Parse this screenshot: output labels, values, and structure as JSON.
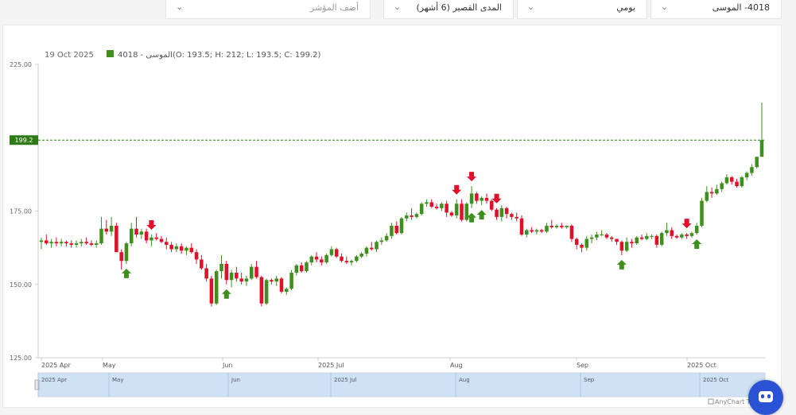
{
  "toolbar": {
    "symbol_select": "4018- الموسى",
    "interval_select": "يومي",
    "range_select": "المدى القصير (6 أشهر)",
    "indicator_placeholder": "أضف المؤشر"
  },
  "chart_data": {
    "type": "candlestick",
    "info": {
      "date": "19 Oct 2025",
      "series_label": "4018 - الموسى",
      "ohlc_text": "(O: 193.5; H: 212; L: 193.5; C: 199.2)"
    },
    "last_price": "199.2",
    "ylim": [
      125,
      225
    ],
    "yticks": [
      "225.00",
      "175.00",
      "150.00",
      "125.00"
    ],
    "xticks": [
      "2025 Apr",
      "May",
      "Jun",
      "2025 Jul",
      "Aug",
      "Sep",
      "2025 Oct"
    ],
    "navigator_ticks": [
      "2025 Apr",
      "May",
      "Jun",
      "2025 Jul",
      "Aug",
      "Sep",
      "2025 Oct"
    ],
    "colors": {
      "up": "#3f8f1f",
      "down": "#e0102a",
      "last_price": "#2f7a17",
      "navigator": "#cfe2f5"
    },
    "credit": "AnyChart Trial",
    "ohlc": [
      [
        164.5,
        166.0,
        162.0,
        165.0
      ],
      [
        165.0,
        167.0,
        163.5,
        164.0
      ],
      [
        164.0,
        165.5,
        162.5,
        164.5
      ],
      [
        164.5,
        166.0,
        163.0,
        164.0
      ],
      [
        164.0,
        165.5,
        163.0,
        164.5
      ],
      [
        164.5,
        165.0,
        163.0,
        164.0
      ],
      [
        164.0,
        165.0,
        162.5,
        163.5
      ],
      [
        163.5,
        165.0,
        162.5,
        164.0
      ],
      [
        164.0,
        165.5,
        163.0,
        164.5
      ],
      [
        164.5,
        166.0,
        163.5,
        164.0
      ],
      [
        164.0,
        165.0,
        163.0,
        163.5
      ],
      [
        163.5,
        165.0,
        162.5,
        164.0
      ],
      [
        164.0,
        173.0,
        163.5,
        169.0
      ],
      [
        169.0,
        172.0,
        167.0,
        168.0
      ],
      [
        168.0,
        173.0,
        166.5,
        170.0
      ],
      [
        170.0,
        171.0,
        161.0,
        161.0
      ],
      [
        161.0,
        162.0,
        155.0,
        158.0
      ],
      [
        158.0,
        164.5,
        157.0,
        164.0
      ],
      [
        164.0,
        171.0,
        163.0,
        169.0
      ],
      [
        169.0,
        173.0,
        166.0,
        167.0
      ],
      [
        167.0,
        169.0,
        165.5,
        168.0
      ],
      [
        168.0,
        169.0,
        164.0,
        165.0
      ],
      [
        165.0,
        167.0,
        163.0,
        166.0
      ],
      [
        166.0,
        167.5,
        165.0,
        165.5
      ],
      [
        165.5,
        166.5,
        164.0,
        164.5
      ],
      [
        164.5,
        166.0,
        162.0,
        163.5
      ],
      [
        163.5,
        164.5,
        161.0,
        162.0
      ],
      [
        162.0,
        164.0,
        161.0,
        163.0
      ],
      [
        163.0,
        164.0,
        160.5,
        161.5
      ],
      [
        161.5,
        163.0,
        160.0,
        162.5
      ],
      [
        162.5,
        164.0,
        160.5,
        161.0
      ],
      [
        161.0,
        162.0,
        157.0,
        158.5
      ],
      [
        158.5,
        160.0,
        155.0,
        155.5
      ],
      [
        155.5,
        157.0,
        151.0,
        152.0
      ],
      [
        152.0,
        153.0,
        142.5,
        143.5
      ],
      [
        143.5,
        155.0,
        143.0,
        154.5
      ],
      [
        154.5,
        160.0,
        152.0,
        157.0
      ],
      [
        157.0,
        158.0,
        150.0,
        151.5
      ],
      [
        151.5,
        155.0,
        149.0,
        154.0
      ],
      [
        154.0,
        156.0,
        151.0,
        152.0
      ],
      [
        152.0,
        154.0,
        150.0,
        151.0
      ],
      [
        151.0,
        153.0,
        149.5,
        152.0
      ],
      [
        152.0,
        157.0,
        151.5,
        156.0
      ],
      [
        156.0,
        158.0,
        152.0,
        152.5
      ],
      [
        152.5,
        153.0,
        142.5,
        143.5
      ],
      [
        143.5,
        152.0,
        143.0,
        151.5
      ],
      [
        151.5,
        152.0,
        150.0,
        151.0
      ],
      [
        151.0,
        153.0,
        149.5,
        152.0
      ],
      [
        152.0,
        152.5,
        147.0,
        147.5
      ],
      [
        147.5,
        149.0,
        146.5,
        148.5
      ],
      [
        148.5,
        155.0,
        148.0,
        154.0
      ],
      [
        154.0,
        157.0,
        153.0,
        156.5
      ],
      [
        156.5,
        157.5,
        154.0,
        154.5
      ],
      [
        154.5,
        158.0,
        154.0,
        157.5
      ],
      [
        157.5,
        160.0,
        156.5,
        159.5
      ],
      [
        159.5,
        161.0,
        157.5,
        158.5
      ],
      [
        158.5,
        159.5,
        156.5,
        157.5
      ],
      [
        157.5,
        160.5,
        157.0,
        160.0
      ],
      [
        160.0,
        163.0,
        159.5,
        162.0
      ],
      [
        162.0,
        162.5,
        159.0,
        159.5
      ],
      [
        159.5,
        160.5,
        157.5,
        158.0
      ],
      [
        158.0,
        159.5,
        157.0,
        157.5
      ],
      [
        157.5,
        158.5,
        156.5,
        158.0
      ],
      [
        158.0,
        160.0,
        157.5,
        159.5
      ],
      [
        159.5,
        161.0,
        159.0,
        160.5
      ],
      [
        160.5,
        163.0,
        159.5,
        162.5
      ],
      [
        162.5,
        164.5,
        161.5,
        162.0
      ],
      [
        162.0,
        165.0,
        161.0,
        164.5
      ],
      [
        164.5,
        166.0,
        163.5,
        165.0
      ],
      [
        165.0,
        167.5,
        164.5,
        166.5
      ],
      [
        166.5,
        171.0,
        165.5,
        170.0
      ],
      [
        170.0,
        171.5,
        167.0,
        167.5
      ],
      [
        167.5,
        173.0,
        167.0,
        172.5
      ],
      [
        172.5,
        174.5,
        171.5,
        173.5
      ],
      [
        173.5,
        176.0,
        172.0,
        173.0
      ],
      [
        173.0,
        174.5,
        172.5,
        174.0
      ],
      [
        174.0,
        178.0,
        173.5,
        177.5
      ],
      [
        177.5,
        179.0,
        176.5,
        178.0
      ],
      [
        178.0,
        179.0,
        176.0,
        176.5
      ],
      [
        176.5,
        177.5,
        175.5,
        176.0
      ],
      [
        176.0,
        178.0,
        175.0,
        177.5
      ],
      [
        177.5,
        178.5,
        173.0,
        174.5
      ],
      [
        174.5,
        175.0,
        173.0,
        173.5
      ],
      [
        173.5,
        179.0,
        172.5,
        177.5
      ],
      [
        177.5,
        179.0,
        171.5,
        172.0
      ],
      [
        172.0,
        178.0,
        171.5,
        177.5
      ],
      [
        177.5,
        183.5,
        176.0,
        181.0
      ],
      [
        181.0,
        181.5,
        177.5,
        178.5
      ],
      [
        178.5,
        180.0,
        177.0,
        179.5
      ],
      [
        179.5,
        181.0,
        177.5,
        178.5
      ],
      [
        178.5,
        179.0,
        175.0,
        175.5
      ],
      [
        175.5,
        176.0,
        172.0,
        173.0
      ],
      [
        173.0,
        177.0,
        171.5,
        176.0
      ],
      [
        176.0,
        176.5,
        172.5,
        174.0
      ],
      [
        174.0,
        174.5,
        172.0,
        173.0
      ],
      [
        173.0,
        174.5,
        171.5,
        172.5
      ],
      [
        172.5,
        173.5,
        166.5,
        167.0
      ],
      [
        167.0,
        169.0,
        166.0,
        168.5
      ],
      [
        168.5,
        169.5,
        167.5,
        168.0
      ],
      [
        168.0,
        169.0,
        167.0,
        168.5
      ],
      [
        168.5,
        169.0,
        167.5,
        168.0
      ],
      [
        168.0,
        171.0,
        167.5,
        170.0
      ],
      [
        170.0,
        172.0,
        169.0,
        169.5
      ],
      [
        169.5,
        170.5,
        169.0,
        170.0
      ],
      [
        170.0,
        171.0,
        169.0,
        169.5
      ],
      [
        169.5,
        170.0,
        169.0,
        170.0
      ],
      [
        170.0,
        170.5,
        164.5,
        165.5
      ],
      [
        165.5,
        166.0,
        162.0,
        163.5
      ],
      [
        163.5,
        164.0,
        161.0,
        162.5
      ],
      [
        162.5,
        166.5,
        161.5,
        165.5
      ],
      [
        165.5,
        167.0,
        164.0,
        166.0
      ],
      [
        166.0,
        168.0,
        165.0,
        167.0
      ],
      [
        167.0,
        168.5,
        166.5,
        167.0
      ],
      [
        167.0,
        167.5,
        165.5,
        166.0
      ],
      [
        166.0,
        166.5,
        164.5,
        165.5
      ],
      [
        165.5,
        165.5,
        163.5,
        164.5
      ],
      [
        164.5,
        165.0,
        160.0,
        161.5
      ],
      [
        161.5,
        166.0,
        161.0,
        164.5
      ],
      [
        164.5,
        165.5,
        162.5,
        164.0
      ],
      [
        164.0,
        166.5,
        163.5,
        166.0
      ],
      [
        166.0,
        167.0,
        165.0,
        165.5
      ],
      [
        165.5,
        167.5,
        165.0,
        166.5
      ],
      [
        166.5,
        167.0,
        165.5,
        166.5
      ],
      [
        166.5,
        167.0,
        162.5,
        163.5
      ],
      [
        163.5,
        168.0,
        163.0,
        167.5
      ],
      [
        167.5,
        171.0,
        166.5,
        168.5
      ],
      [
        168.5,
        169.5,
        165.5,
        166.5
      ],
      [
        166.5,
        167.0,
        165.5,
        166.0
      ],
      [
        166.0,
        167.5,
        165.5,
        167.0
      ],
      [
        167.0,
        167.5,
        165.5,
        166.5
      ],
      [
        166.5,
        168.0,
        166.0,
        167.5
      ],
      [
        167.5,
        171.0,
        167.0,
        170.0
      ],
      [
        170.0,
        179.5,
        169.5,
        178.5
      ],
      [
        178.5,
        183.5,
        178.0,
        181.5
      ],
      [
        181.5,
        183.0,
        179.5,
        181.0
      ],
      [
        181.0,
        184.0,
        180.5,
        182.5
      ],
      [
        182.5,
        185.0,
        181.5,
        184.5
      ],
      [
        184.5,
        187.5,
        184.0,
        186.5
      ],
      [
        186.5,
        187.0,
        184.0,
        185.0
      ],
      [
        185.0,
        186.0,
        183.0,
        183.5
      ],
      [
        183.5,
        187.0,
        183.0,
        186.5
      ],
      [
        186.5,
        188.5,
        185.5,
        188.0
      ],
      [
        188.0,
        191.0,
        187.0,
        190.0
      ],
      [
        190.0,
        193.5,
        189.5,
        193.5
      ],
      [
        193.5,
        212.0,
        193.5,
        199.2
      ]
    ],
    "buy_signals": [
      17,
      37,
      86,
      88,
      116,
      131
    ],
    "sell_signals": [
      22,
      83,
      86,
      91,
      129
    ]
  }
}
